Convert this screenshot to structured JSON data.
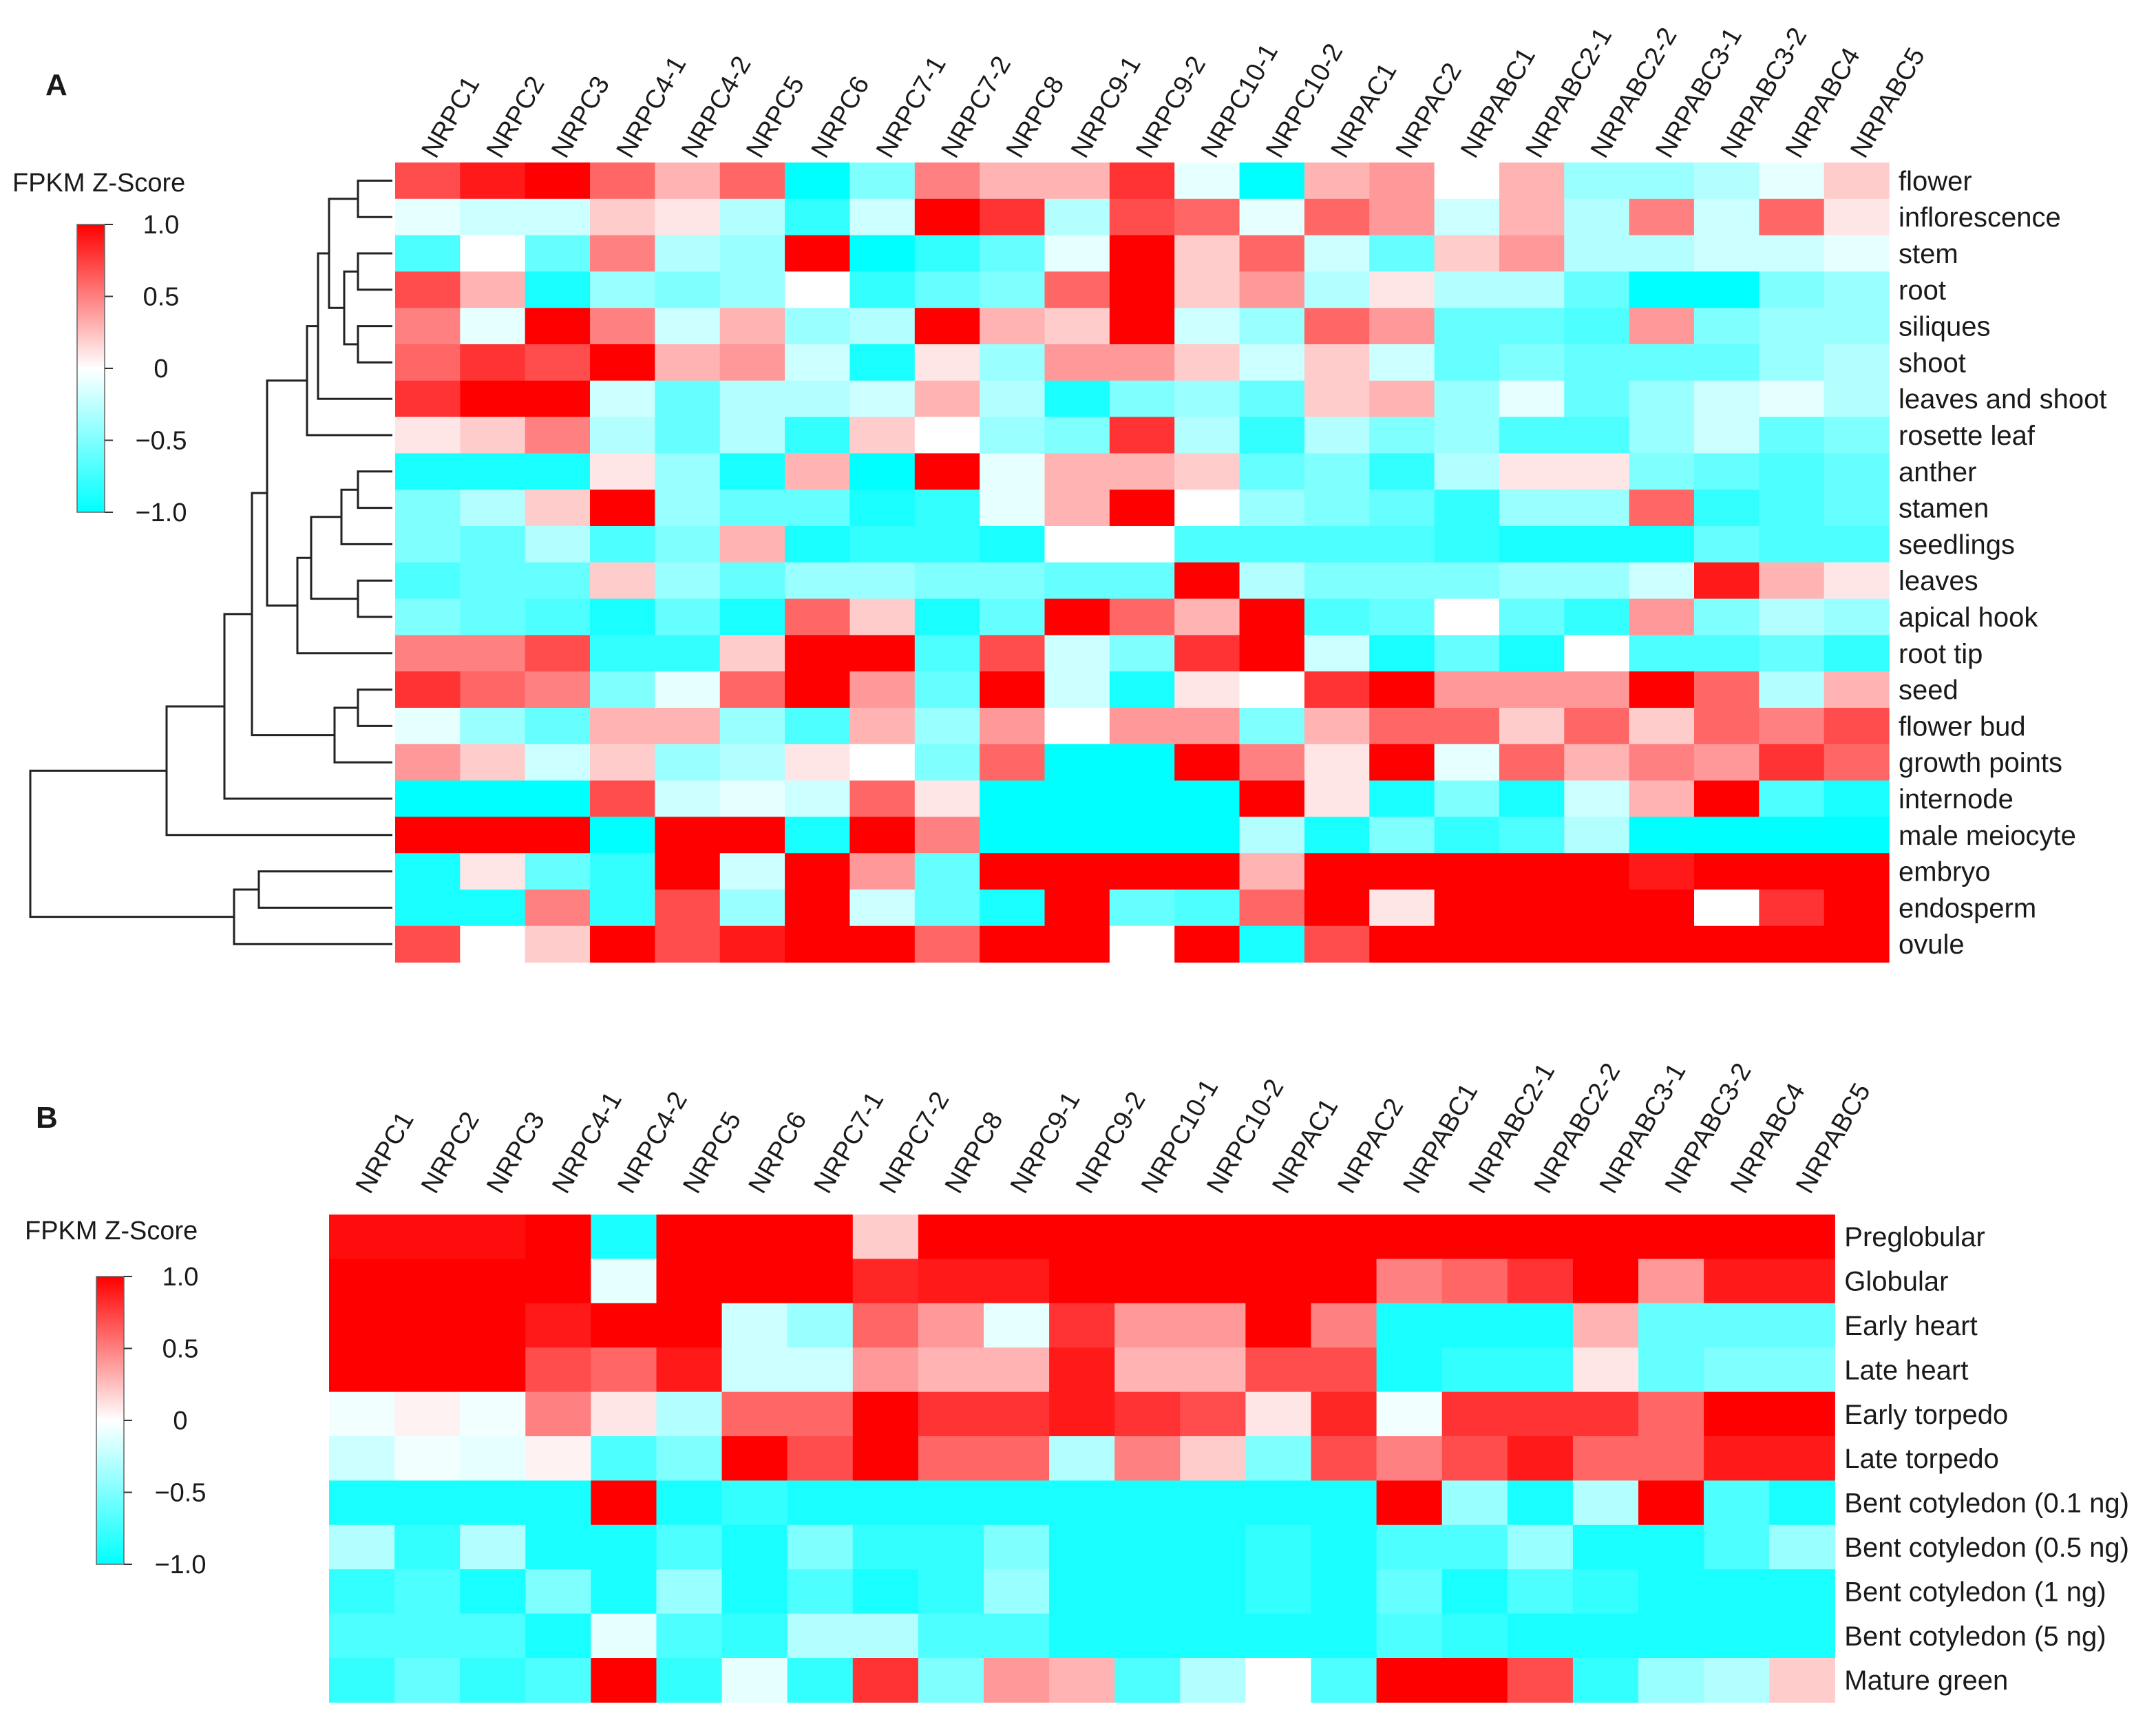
{
  "chart_data": [
    {
      "type": "heatmap",
      "panel": "A",
      "legend": {
        "title": "FPKM Z-Score",
        "ticks": [
          "1.0",
          "0.5",
          "0",
          "−0.5",
          "−1.0"
        ],
        "range": [
          -1,
          1
        ]
      },
      "columns": [
        "NRPC1",
        "NRPC2",
        "NRPC3",
        "NRPC4-1",
        "NRPC4-2",
        "NRPC5",
        "NRPC6",
        "NRPC7-1",
        "NRPC7-2",
        "NRPC8",
        "NRPC9-1",
        "NRPC9-2",
        "NRPC10-1",
        "NRPC10-2",
        "NRPAC1",
        "NRPAC2",
        "NRPABC1",
        "NRPABC2-1",
        "NRPABC2-2",
        "NRPABC3-1",
        "NRPABC3-2",
        "NRPABC4",
        "NRPABC5"
      ],
      "rows": [
        "flower",
        "inflorescence",
        "stem",
        "root",
        "siliques",
        "shoot",
        "leaves and shoot",
        "rosette leaf",
        "anther",
        "stamen",
        "seedlings",
        "leaves",
        "apical hook",
        "root tip",
        "seed",
        "flower bud",
        "growth points",
        "internode",
        "male meiocyte",
        "embryo",
        "endosperm",
        "ovule"
      ],
      "values": [
        [
          0.7,
          0.9,
          1.0,
          0.6,
          0.3,
          0.6,
          -1.0,
          -0.5,
          0.5,
          0.3,
          0.3,
          0.8,
          -0.1,
          -1.0,
          0.3,
          0.4,
          0.0,
          0.3,
          -0.4,
          -0.4,
          -0.3,
          -0.1,
          0.2
        ],
        [
          -0.1,
          -0.2,
          -0.2,
          0.2,
          0.1,
          -0.3,
          -0.8,
          -0.2,
          1.0,
          0.8,
          -0.3,
          0.7,
          0.6,
          -0.1,
          0.6,
          0.4,
          -0.2,
          0.3,
          -0.3,
          0.5,
          -0.2,
          0.6,
          0.1
        ],
        [
          -0.7,
          0.0,
          -0.6,
          0.5,
          -0.3,
          -0.4,
          1.0,
          -1.0,
          -0.8,
          -0.6,
          -0.1,
          1.0,
          0.2,
          0.6,
          -0.2,
          -0.6,
          0.2,
          0.4,
          -0.3,
          -0.3,
          -0.2,
          -0.2,
          -0.1
        ],
        [
          0.7,
          0.3,
          -0.9,
          -0.4,
          -0.5,
          -0.4,
          0.0,
          -0.8,
          -0.6,
          -0.5,
          0.6,
          1.0,
          0.2,
          0.4,
          -0.3,
          0.1,
          -0.3,
          -0.3,
          -0.6,
          -1.0,
          -1.0,
          -0.5,
          -0.4
        ],
        [
          0.5,
          -0.1,
          1.0,
          0.5,
          -0.2,
          0.3,
          -0.4,
          -0.3,
          1.0,
          0.3,
          0.2,
          1.0,
          -0.2,
          -0.4,
          0.6,
          0.4,
          -0.6,
          -0.6,
          -0.7,
          0.4,
          -0.5,
          -0.4,
          -0.4
        ],
        [
          0.6,
          0.8,
          0.7,
          1.0,
          0.3,
          0.4,
          -0.2,
          -0.9,
          0.1,
          -0.4,
          0.4,
          0.4,
          0.2,
          -0.2,
          0.2,
          -0.2,
          -0.6,
          -0.5,
          -0.6,
          -0.6,
          -0.6,
          -0.4,
          -0.3
        ],
        [
          0.8,
          1.0,
          1.0,
          -0.2,
          -0.6,
          -0.3,
          -0.3,
          -0.2,
          0.3,
          -0.3,
          -0.9,
          -0.5,
          -0.4,
          -0.6,
          0.2,
          0.3,
          -0.4,
          -0.1,
          -0.6,
          -0.4,
          -0.2,
          -0.1,
          -0.3
        ],
        [
          0.1,
          0.2,
          0.5,
          -0.3,
          -0.6,
          -0.3,
          -0.8,
          0.2,
          0.0,
          -0.4,
          -0.5,
          0.8,
          -0.3,
          -0.8,
          -0.3,
          -0.5,
          -0.4,
          -0.7,
          -0.7,
          -0.4,
          -0.2,
          -0.6,
          -0.5
        ],
        [
          -0.9,
          -0.9,
          -0.9,
          0.1,
          -0.4,
          -0.9,
          0.3,
          -1.0,
          1.0,
          -0.1,
          0.3,
          0.3,
          0.2,
          -0.6,
          -0.5,
          -0.8,
          -0.3,
          0.1,
          0.1,
          -0.5,
          -0.6,
          -0.7,
          -0.6
        ],
        [
          -0.5,
          -0.3,
          0.2,
          1.0,
          -0.4,
          -0.6,
          -0.6,
          -0.9,
          -0.8,
          -0.1,
          0.3,
          1.0,
          0.0,
          -0.4,
          -0.5,
          -0.6,
          -0.8,
          -0.4,
          -0.4,
          0.6,
          -0.8,
          -0.7,
          -0.6
        ],
        [
          -0.5,
          -0.6,
          -0.3,
          -0.7,
          -0.5,
          0.3,
          -0.9,
          -0.8,
          -0.8,
          -0.9,
          0.0,
          0.0,
          -0.7,
          -0.7,
          -0.7,
          -0.7,
          -0.8,
          -0.9,
          -0.9,
          -0.9,
          -0.6,
          -0.7,
          -0.7
        ],
        [
          -0.7,
          -0.6,
          -0.6,
          0.2,
          -0.4,
          -0.6,
          -0.4,
          -0.4,
          -0.5,
          -0.5,
          -0.6,
          -0.6,
          1.0,
          -0.3,
          -0.5,
          -0.5,
          -0.5,
          -0.4,
          -0.4,
          -0.2,
          0.9,
          0.3,
          0.1
        ],
        [
          -0.5,
          -0.6,
          -0.7,
          -0.9,
          -0.6,
          -0.9,
          0.6,
          0.2,
          -0.9,
          -0.6,
          1.0,
          0.6,
          0.3,
          1.0,
          -0.7,
          -0.6,
          0.0,
          -0.6,
          -0.8,
          0.4,
          -0.5,
          -0.3,
          -0.4
        ],
        [
          0.5,
          0.5,
          0.7,
          -0.8,
          -0.8,
          0.2,
          1.0,
          1.0,
          -0.7,
          0.7,
          -0.2,
          -0.5,
          0.8,
          1.0,
          -0.2,
          -0.9,
          -0.6,
          -0.9,
          0.0,
          -0.7,
          -0.7,
          -0.6,
          -0.8
        ],
        [
          0.8,
          0.6,
          0.5,
          -0.5,
          -0.1,
          0.6,
          1.0,
          0.4,
          -0.6,
          1.0,
          -0.2,
          -0.9,
          0.1,
          0.0,
          0.8,
          1.0,
          0.4,
          0.4,
          0.4,
          1.0,
          0.6,
          -0.3,
          0.3
        ],
        [
          -0.1,
          -0.4,
          -0.6,
          0.3,
          0.3,
          -0.4,
          -0.7,
          0.3,
          -0.4,
          0.4,
          0.0,
          0.4,
          0.4,
          -0.5,
          0.3,
          0.6,
          0.6,
          0.2,
          0.6,
          0.2,
          0.6,
          0.5,
          0.7
        ],
        [
          0.4,
          0.2,
          -0.2,
          0.2,
          -0.4,
          -0.3,
          0.1,
          0.0,
          -0.5,
          0.6,
          -1.0,
          -1.0,
          1.0,
          0.5,
          0.1,
          1.0,
          -0.1,
          0.6,
          0.3,
          0.5,
          0.4,
          0.8,
          0.6
        ],
        [
          -1.0,
          -1.0,
          -1.0,
          0.7,
          -0.2,
          -0.1,
          -0.2,
          0.6,
          0.1,
          -1.0,
          -1.0,
          -1.0,
          -1.0,
          1.0,
          0.1,
          -0.9,
          -0.5,
          -0.9,
          -0.2,
          0.3,
          1.0,
          -0.7,
          -0.9
        ],
        [
          1.0,
          1.0,
          1.0,
          -1.0,
          1.0,
          1.0,
          -0.9,
          1.0,
          0.5,
          -1.0,
          -1.0,
          -1.0,
          -1.0,
          -0.3,
          -0.9,
          -0.5,
          -0.8,
          -0.7,
          -0.3,
          -1.0,
          -1.0,
          -1.0,
          -1.0
        ],
        [
          -0.9,
          0.1,
          -0.6,
          -0.8,
          1.0,
          -0.2,
          1.0,
          0.4,
          -0.6,
          1.0,
          1.0,
          1.0,
          1.0,
          0.3,
          1.0,
          1.0,
          1.0,
          1.0,
          1.0,
          0.9,
          1.0,
          1.0,
          1.0
        ],
        [
          -0.9,
          -0.9,
          0.5,
          -0.8,
          0.7,
          -0.4,
          1.0,
          -0.2,
          -0.6,
          -0.9,
          1.0,
          -0.6,
          -0.7,
          0.6,
          1.0,
          0.1,
          1.0,
          1.0,
          1.0,
          1.0,
          0.0,
          0.8,
          1.0
        ],
        [
          0.7,
          0.0,
          0.2,
          1.0,
          0.7,
          0.9,
          1.0,
          1.0,
          0.6,
          1.0,
          1.0,
          0.0,
          1.0,
          -0.9,
          0.7,
          1.0,
          1.0,
          1.0,
          1.0,
          1.0,
          1.0,
          1.0,
          1.0
        ]
      ]
    },
    {
      "type": "heatmap",
      "panel": "B",
      "legend": {
        "title": "FPKM Z-Score",
        "ticks": [
          "1.0",
          "0.5",
          "0",
          "−0.5",
          "−1.0"
        ],
        "range": [
          -1,
          1
        ]
      },
      "columns": [
        "NRPC1",
        "NRPC2",
        "NRPC3",
        "NRPC4-1",
        "NRPC4-2",
        "NRPC5",
        "NRPC6",
        "NRPC7-1",
        "NRPC7-2",
        "NRPC8",
        "NRPC9-1",
        "NRPC9-2",
        "NRPC10-1",
        "NRPC10-2",
        "NRPAC1",
        "NRPAC2",
        "NRPABC1",
        "NRPABC2-1",
        "NRPABC2-2",
        "NRPABC3-1",
        "NRPABC3-2",
        "NRPABC4",
        "NRPABC5"
      ],
      "rows": [
        "Preglobular",
        "Globular",
        "Early heart",
        "Late heart",
        "Early torpedo",
        "Late torpedo",
        "Bent cotyledon (0.1 ng)",
        "Bent cotyledon (0.5 ng)",
        "Bent cotyledon (1 ng)",
        "Bent cotyledon (5 ng)",
        "Mature green"
      ],
      "values": [
        [
          0.95,
          0.95,
          0.95,
          1.0,
          -0.9,
          1.0,
          1.0,
          1.0,
          0.2,
          1.0,
          1.0,
          1.0,
          1.0,
          1.0,
          1.0,
          1.0,
          1.0,
          1.0,
          1.0,
          1.0,
          1.0,
          1.0,
          1.0
        ],
        [
          1.0,
          1.0,
          1.0,
          1.0,
          -0.1,
          1.0,
          1.0,
          1.0,
          0.85,
          0.9,
          0.9,
          1.0,
          1.0,
          1.0,
          1.0,
          1.0,
          0.5,
          0.6,
          0.8,
          1.0,
          0.4,
          0.9,
          0.9
        ],
        [
          1.0,
          1.0,
          1.0,
          0.9,
          1.0,
          1.0,
          -0.2,
          -0.4,
          0.6,
          0.4,
          -0.1,
          0.8,
          0.4,
          0.4,
          1.0,
          0.5,
          -0.9,
          -0.9,
          -0.9,
          0.3,
          -0.6,
          -0.6,
          -0.6
        ],
        [
          1.0,
          1.0,
          1.0,
          0.7,
          0.6,
          0.9,
          -0.2,
          -0.2,
          0.4,
          0.3,
          0.3,
          0.9,
          0.3,
          0.3,
          0.7,
          0.7,
          -0.9,
          -0.8,
          -0.8,
          0.1,
          -0.6,
          -0.5,
          -0.5
        ],
        [
          -0.05,
          0.05,
          -0.05,
          0.5,
          0.1,
          -0.3,
          0.6,
          0.6,
          1.0,
          0.8,
          0.8,
          0.9,
          0.8,
          0.7,
          0.1,
          0.85,
          -0.05,
          0.8,
          0.8,
          0.8,
          0.6,
          1.0,
          1.0
        ],
        [
          -0.2,
          -0.05,
          -0.1,
          0.05,
          -0.7,
          -0.5,
          1.0,
          0.7,
          1.0,
          0.6,
          0.6,
          -0.3,
          0.5,
          0.2,
          -0.5,
          0.7,
          0.5,
          0.7,
          0.9,
          0.6,
          0.6,
          0.9,
          0.9
        ],
        [
          -0.9,
          -0.9,
          -0.9,
          -0.9,
          1.0,
          -0.9,
          -0.8,
          -0.9,
          -0.9,
          -0.9,
          -0.9,
          -0.9,
          -0.9,
          -0.9,
          -0.9,
          -0.9,
          1.0,
          -0.4,
          -0.9,
          -0.3,
          1.0,
          -0.7,
          -0.9
        ],
        [
          -0.3,
          -0.8,
          -0.3,
          -0.9,
          -0.9,
          -0.7,
          -0.9,
          -0.5,
          -0.8,
          -0.8,
          -0.5,
          -0.9,
          -0.9,
          -0.9,
          -0.8,
          -0.9,
          -0.7,
          -0.7,
          -0.4,
          -0.9,
          -0.9,
          -0.7,
          -0.4
        ],
        [
          -0.8,
          -0.7,
          -0.9,
          -0.5,
          -0.9,
          -0.4,
          -0.9,
          -0.7,
          -0.9,
          -0.8,
          -0.4,
          -0.9,
          -0.9,
          -0.9,
          -0.8,
          -0.9,
          -0.6,
          -0.9,
          -0.7,
          -0.8,
          -0.9,
          -0.9,
          -0.9
        ],
        [
          -0.7,
          -0.7,
          -0.7,
          -0.9,
          -0.1,
          -0.7,
          -0.8,
          -0.3,
          -0.3,
          -0.7,
          -0.7,
          -0.9,
          -0.9,
          -0.9,
          -0.9,
          -0.9,
          -0.7,
          -0.8,
          -0.9,
          -0.9,
          -0.9,
          -0.9,
          -0.9
        ],
        [
          -0.8,
          -0.6,
          -0.8,
          -0.7,
          1.0,
          -0.8,
          -0.1,
          -0.8,
          0.8,
          -0.5,
          0.4,
          0.3,
          -0.7,
          -0.3,
          0.0,
          -0.7,
          1.0,
          1.0,
          0.7,
          -0.8,
          -0.4,
          -0.3,
          0.2
        ]
      ]
    }
  ],
  "panels": {
    "a": "A",
    "b": "B"
  }
}
